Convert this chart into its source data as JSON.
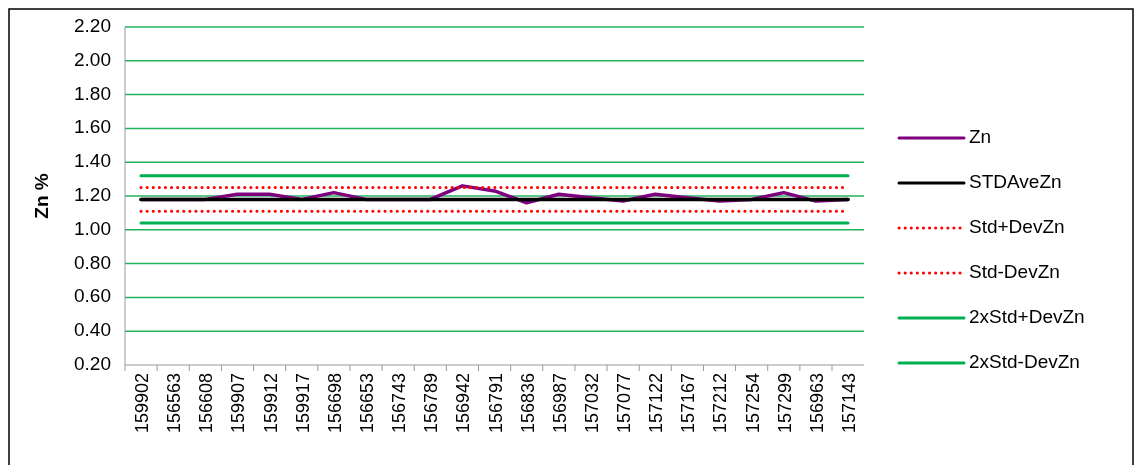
{
  "chart_data": {
    "type": "line",
    "ylabel": "Zn %",
    "categories": [
      "159902",
      "156563",
      "156608",
      "159907",
      "159912",
      "159917",
      "156698",
      "156653",
      "156743",
      "156789",
      "156942",
      "156791",
      "156836",
      "156987",
      "157032",
      "157077",
      "157122",
      "157167",
      "157212",
      "157254",
      "157299",
      "156963",
      "157143"
    ],
    "series": [
      {
        "name": "Zn",
        "color": "#7f007f",
        "values": [
          1.18,
          1.18,
          1.18,
          1.21,
          1.21,
          1.18,
          1.22,
          1.18,
          1.18,
          1.18,
          1.26,
          1.23,
          1.16,
          1.21,
          1.19,
          1.17,
          1.21,
          1.19,
          1.17,
          1.18,
          1.22,
          1.17,
          1.18
        ]
      },
      {
        "name": "STDAveZn",
        "color": "#000000",
        "values": [
          1.18,
          1.18,
          1.18,
          1.18,
          1.18,
          1.18,
          1.18,
          1.18,
          1.18,
          1.18,
          1.18,
          1.18,
          1.18,
          1.18,
          1.18,
          1.18,
          1.18,
          1.18,
          1.18,
          1.18,
          1.18,
          1.18,
          1.18
        ]
      },
      {
        "name": "Std+DevZn",
        "color": "#ff0000",
        "line_style": "dotted",
        "values": [
          1.25,
          1.25,
          1.25,
          1.25,
          1.25,
          1.25,
          1.25,
          1.25,
          1.25,
          1.25,
          1.25,
          1.25,
          1.25,
          1.25,
          1.25,
          1.25,
          1.25,
          1.25,
          1.25,
          1.25,
          1.25,
          1.25,
          1.25
        ]
      },
      {
        "name": "Std-DevZn",
        "color": "#ff0000",
        "line_style": "dotted",
        "values": [
          1.11,
          1.11,
          1.11,
          1.11,
          1.11,
          1.11,
          1.11,
          1.11,
          1.11,
          1.11,
          1.11,
          1.11,
          1.11,
          1.11,
          1.11,
          1.11,
          1.11,
          1.11,
          1.11,
          1.11,
          1.11,
          1.11,
          1.11
        ]
      },
      {
        "name": "2xStd+DevZn",
        "color": "#00b050",
        "values": [
          1.32,
          1.32,
          1.32,
          1.32,
          1.32,
          1.32,
          1.32,
          1.32,
          1.32,
          1.32,
          1.32,
          1.32,
          1.32,
          1.32,
          1.32,
          1.32,
          1.32,
          1.32,
          1.32,
          1.32,
          1.32,
          1.32,
          1.32
        ]
      },
      {
        "name": "2xStd-DevZn",
        "color": "#00b050",
        "values": [
          1.04,
          1.04,
          1.04,
          1.04,
          1.04,
          1.04,
          1.04,
          1.04,
          1.04,
          1.04,
          1.04,
          1.04,
          1.04,
          1.04,
          1.04,
          1.04,
          1.04,
          1.04,
          1.04,
          1.04,
          1.04,
          1.04,
          1.04
        ]
      }
    ],
    "ylim": [
      0.2,
      2.2
    ],
    "yticks": [
      {
        "value": 0.2,
        "label": "0.20"
      },
      {
        "value": 0.4,
        "label": "0.40"
      },
      {
        "value": 0.6,
        "label": "0.60"
      },
      {
        "value": 0.8,
        "label": "0.80"
      },
      {
        "value": 1,
        "label": "1.00"
      },
      {
        "value": 1.2,
        "label": "1.20"
      },
      {
        "value": 1.4,
        "label": "1.40"
      },
      {
        "value": 1.6,
        "label": "1.60"
      },
      {
        "value": 1.8,
        "label": "1.80"
      },
      {
        "value": 2,
        "label": "2.00"
      },
      {
        "value": 2.2,
        "label": "2.20"
      }
    ],
    "grid": "y",
    "legend": "right",
    "line_style": "solid"
  }
}
